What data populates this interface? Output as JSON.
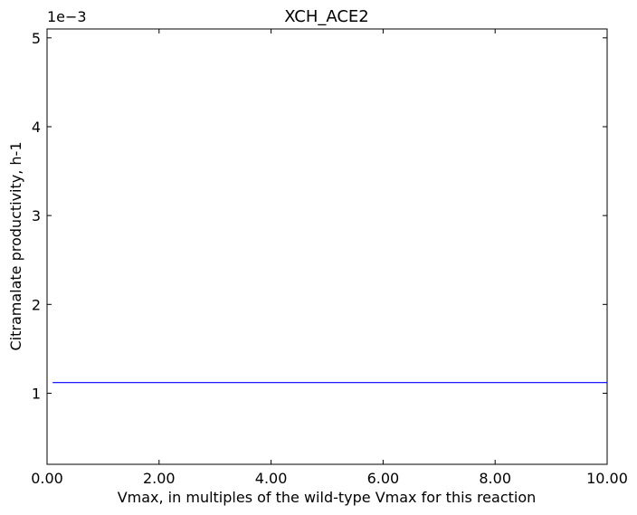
{
  "chart_data": {
    "type": "line",
    "title": "XCH_ACE2",
    "xlabel": "Vmax, in multiples of the wild-type Vmax for this reaction",
    "ylabel": "Citramalate productivity, h-1",
    "y_offset_label": "1e−3",
    "xlim": [
      0.0,
      10.0
    ],
    "ylim": [
      0.2,
      5.1
    ],
    "x_ticks": [
      0,
      2,
      4,
      6,
      8,
      10
    ],
    "x_tick_labels": [
      "0.00",
      "2.00",
      "4.00",
      "6.00",
      "8.00",
      "10.00"
    ],
    "y_ticks": [
      1,
      2,
      3,
      4,
      5
    ],
    "y_tick_labels": [
      "1",
      "2",
      "3",
      "4",
      "5"
    ],
    "grid": false,
    "series": [
      {
        "color": "#0000ff",
        "x": [
          0.1,
          1.0,
          2.0,
          3.0,
          4.0,
          5.0,
          6.0,
          7.0,
          8.0,
          9.0,
          10.0
        ],
        "y": [
          1.12,
          1.12,
          1.12,
          1.12,
          1.12,
          1.12,
          1.12,
          1.12,
          1.12,
          1.12,
          1.12
        ]
      }
    ]
  }
}
